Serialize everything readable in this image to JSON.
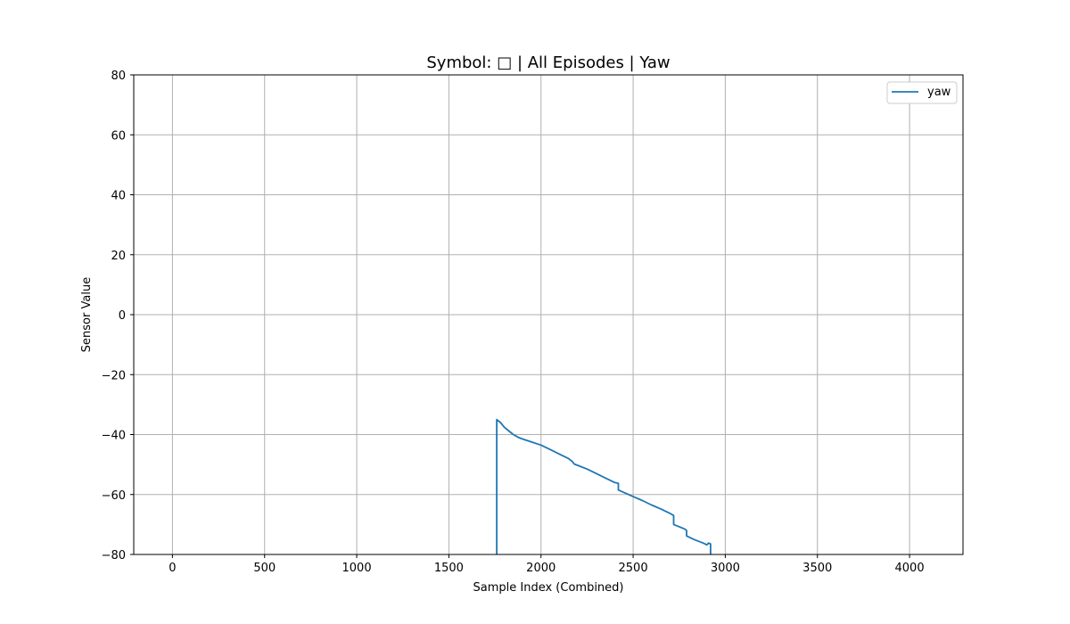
{
  "chart_data": {
    "type": "line",
    "title": "Symbol: □ | All Episodes | Yaw",
    "xlabel": "Sample Index (Combined)",
    "ylabel": "Sensor Value",
    "xlim": [
      -210,
      4290
    ],
    "ylim": [
      -80,
      80
    ],
    "xticks": [
      0,
      500,
      1000,
      1500,
      2000,
      2500,
      3000,
      3500,
      4000
    ],
    "yticks": [
      -80,
      -60,
      -40,
      -20,
      0,
      20,
      40,
      60,
      80
    ],
    "grid": true,
    "legend_position": "top-right",
    "series": [
      {
        "name": "yaw",
        "color": "#1f77b4",
        "x": [
          1760,
          1760,
          1780,
          1800,
          1820,
          1850,
          1880,
          1900,
          1950,
          2000,
          2050,
          2100,
          2150,
          2170,
          2180,
          2200,
          2250,
          2300,
          2350,
          2400,
          2420,
          2420,
          2450,
          2500,
          2550,
          2600,
          2650,
          2700,
          2720,
          2720,
          2780,
          2790,
          2790,
          2830,
          2880,
          2900,
          2910,
          2920,
          2920
        ],
        "values": [
          -80,
          -35,
          -36,
          -37.5,
          -38.5,
          -40,
          -41,
          -41.5,
          -42.5,
          -43.5,
          -45,
          -46.5,
          -48,
          -49,
          -49.8,
          -50.3,
          -51.5,
          -53,
          -54.5,
          -56,
          -56.3,
          -58.5,
          -59.3,
          -60.7,
          -62,
          -63.5,
          -64.8,
          -66.3,
          -67,
          -70,
          -71.5,
          -72,
          -73.8,
          -75,
          -76.2,
          -76.8,
          -76.2,
          -76.5,
          -80
        ]
      }
    ]
  }
}
